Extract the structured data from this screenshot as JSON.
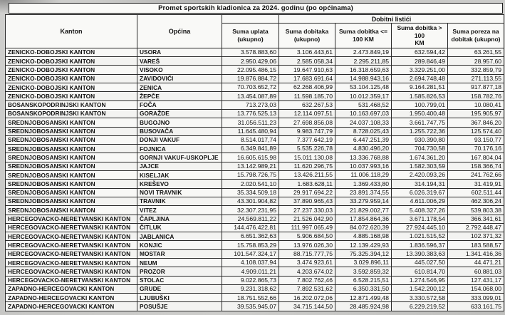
{
  "title": "Promet sportskih kladionica za 2024. godinu (po općinama)",
  "colors": {
    "scan_background": "#c8c8c6",
    "cell_background": "#f8f8f6",
    "border": "#2b2b2b",
    "text": "#101010"
  },
  "table": {
    "headers": {
      "kanton": "Kanton",
      "opcina": "Općina",
      "group": "Dobitni listići",
      "sub": [
        "Suma uplata\n(ukupno)",
        "Suma dobitaka\n(ukupno)",
        "Suma dobitka <=\n100 KM",
        "Suma dobitka > 100\nKM",
        "Suma poreza na\ndobitak (ukupno)"
      ]
    },
    "rows": [
      [
        "ZENICKO-DOBOJSKI KANTON",
        "USORA",
        "3.578.883,60",
        "3.106.443,61",
        "2.473.849,19",
        "632.594,42",
        "63.261,55"
      ],
      [
        "ZENICKO-DOBOJSKI KANTON",
        "VAREŠ",
        "2.950.429,06",
        "2.585.058,34",
        "2.295.211,85",
        "289.846,49",
        "28.957,60"
      ],
      [
        "ZENICKO-DOBOJSKI KANTON",
        "VISOKO",
        "22.095.486,15",
        "19.647.910,63",
        "16.318.659,63",
        "3.329.251,00",
        "332.859,79"
      ],
      [
        "ZENICKO-DOBOJSKI KANTON",
        "ZAVIDOVIĆI",
        "19.876.884,72",
        "17.683.691,64",
        "14.988.943,16",
        "2.694.748,48",
        "271.113,55"
      ],
      [
        "ZENICKO-DOBOJSKI KANTON",
        "ZENICA",
        "70.703.652,72",
        "62.268.406,99",
        "53.104.125,48",
        "9.164.281,51",
        "917.877,18"
      ],
      [
        "ZENICKO-DOBOJSKI KANTON",
        "ŽEPČE",
        "13.454.087,89",
        "11.598.185,70",
        "10.012.359,17",
        "1.585.826,53",
        "158.782,76"
      ],
      [
        "BOSANSKOPODRINJSKI KANTON",
        "FOČA",
        "713.273,03",
        "632.267,53",
        "531.468,52",
        "100.799,01",
        "10.080,41"
      ],
      [
        "BOSANSKOPODRINJSKI KANTON",
        "GORAŽDE",
        "13.776.525,13",
        "12.114.097,51",
        "10.163.697,03",
        "1.950.400,48",
        "195.905,97"
      ],
      [
        "SREDNJOBOSANSKI KANTON",
        "BUGOJNO",
        "31.056.511,23",
        "27.698.856,08",
        "24.037.108,33",
        "3.661.747,75",
        "367.846,20"
      ],
      [
        "SREDNJOBOSANSKI KANTON",
        "BUSOVAČA",
        "11.645.480,94",
        "9.983.747,79",
        "8.728.025,43",
        "1.255.722,36",
        "125.574,40"
      ],
      [
        "SREDNJOBOSANSKI KANTON",
        "DONJI VAKUF",
        "8.514.017,74",
        "7.377.642,19",
        "6.447.251,39",
        "930.390,80",
        "93.150,77"
      ],
      [
        "SREDNJOBOSANSKI KANTON",
        "FOJNICA",
        "6.349.841,89",
        "5.535.226,78",
        "4.830.496,20",
        "704.730,58",
        "70.176,16"
      ],
      [
        "SREDNJOBOSANSKI KANTON",
        "GORNJI VAKUF-USKOPLJE",
        "16.605.615,98",
        "15.011.130,08",
        "13.336.768,88",
        "1.674.361,20",
        "167.804,04"
      ],
      [
        "SREDNJOBOSANSKI KANTON",
        "JAJCE",
        "13.142.989,21",
        "11.620.296,75",
        "10.037.993,16",
        "1.582.303,59",
        "158.366,74"
      ],
      [
        "SREDNJOBOSANSKI KANTON",
        "KISELJAK",
        "15.798.726,75",
        "13.426.211,55",
        "11.006.118,29",
        "2.420.093,26",
        "241.762,66"
      ],
      [
        "SREDNJOBOSANSKI KANTON",
        "KREŠEVO",
        "2.020.541,10",
        "1.683.628,11",
        "1.369.433,80",
        "314.194,31",
        "31.419,91"
      ],
      [
        "SREDNJOBOSANSKI KANTON",
        "NOVI TRAVNIK",
        "35.334.509,18",
        "29.917.694,22",
        "23.891.374,55",
        "6.026.319,67",
        "602.511,44"
      ],
      [
        "SREDNJOBOSANSKI KANTON",
        "TRAVNIK",
        "43.301.904,82",
        "37.890.965,43",
        "33.279.959,14",
        "4.611.006,29",
        "462.306,24"
      ],
      [
        "SREDNJOBOSANSKI KANTON",
        "VITEZ",
        "32.307.231,95",
        "27.237.330,03",
        "21.829.002,77",
        "5.408.327,26",
        "539.803,38"
      ],
      [
        "HERCEGOVACKO-NERETVANSKI KANTON",
        "ČAPLJINA",
        "24.569.811,22",
        "21.526.042,90",
        "17.854.864,36",
        "3.671.178,54",
        "366.341,61"
      ],
      [
        "HERCEGOVACKO-NERETVANSKI KANTON",
        "ČITLUK",
        "144.476.422,81",
        "111.997.065,49",
        "84.072.620,39",
        "27.924.445,10",
        "2.792.448,47"
      ],
      [
        "HERCEGOVACKO-NERETVANSKI KANTON",
        "JABLANICA",
        "6.651.362,63",
        "5.906.684,50",
        "4.885.168,98",
        "1.021.515,52",
        "102.371,32"
      ],
      [
        "HERCEGOVACKO-NERETVANSKI KANTON",
        "KONJIC",
        "15.758.853,29",
        "13.976.026,30",
        "12.139.429,93",
        "1.836.596,37",
        "183.588,57"
      ],
      [
        "HERCEGOVACKO-NERETVANSKI KANTON",
        "MOSTAR",
        "101.547.324,17",
        "88.715.777,75",
        "75.325.394,12",
        "13.390.383,63",
        "1.341.416,36"
      ],
      [
        "HERCEGOVACKO-NERETVANSKI KANTON",
        "NEUM",
        "4.108.037,94",
        "3.474.923,61",
        "3.029.896,11",
        "445.027,50",
        "44.471,21"
      ],
      [
        "HERCEGOVACKO-NERETVANSKI KANTON",
        "PROZOR",
        "4.909.011,21",
        "4.203.674,02",
        "3.592.859,32",
        "610.814,70",
        "60.881,03"
      ],
      [
        "HERCEGOVACKO-NERETVANSKI KANTON",
        "STOLAC",
        "9.022.865,73",
        "7.802.762,46",
        "6.528.215,51",
        "1.274.546,95",
        "127.431,17"
      ],
      [
        "ZAPADNO-HERCEGOVACKI KANTON",
        "GRUDE",
        "9.231.318,62",
        "7.892.531,62",
        "6.350.331,50",
        "1.542.200,12",
        "154.068,00"
      ],
      [
        "ZAPADNO-HERCEGOVACKI KANTON",
        "LJUBUŠKI",
        "18.751.552,66",
        "16.202.072,06",
        "12.871.499,48",
        "3.330.572,58",
        "333.099,01"
      ],
      [
        "ZAPADNO-HERCEGOVACKI KANTON",
        "POSUŠJE",
        "39.535.945,07",
        "34.715.144,50",
        "28.485.924,98",
        "6.229.219,52",
        "633.161,75"
      ]
    ]
  }
}
